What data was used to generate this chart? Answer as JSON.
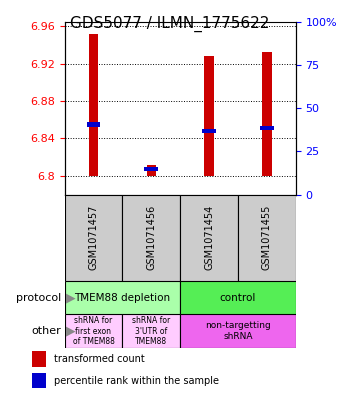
{
  "title": "GDS5077 / ILMN_1775622",
  "samples": [
    "GSM1071457",
    "GSM1071456",
    "GSM1071454",
    "GSM1071455"
  ],
  "bar_bottoms": [
    6.8,
    6.8,
    6.8,
    6.8
  ],
  "bar_tops": [
    6.952,
    6.812,
    6.928,
    6.932
  ],
  "percentile_values": [
    6.855,
    6.807,
    6.848,
    6.851
  ],
  "ylim_left": [
    6.78,
    6.965
  ],
  "yticks_left": [
    6.8,
    6.84,
    6.88,
    6.92,
    6.96
  ],
  "yticks_right": [
    0,
    25,
    50,
    75,
    100
  ],
  "bar_color": "#cc0000",
  "percentile_color": "#0000cc",
  "protocol_labels": [
    "TMEM88 depletion",
    "control"
  ],
  "protocol_colors": [
    "#aaffaa",
    "#55ee55"
  ],
  "other_labels": [
    "shRNA for\nfirst exon\nof TMEM88",
    "shRNA for\n3'UTR of\nTMEM88",
    "non-targetting\nshRNA"
  ],
  "other_colors": [
    "#ffccff",
    "#ffccff",
    "#ee66ee"
  ],
  "legend_red": "transformed count",
  "legend_blue": "percentile rank within the sample",
  "figsize": [
    3.4,
    3.93
  ],
  "dpi": 100
}
